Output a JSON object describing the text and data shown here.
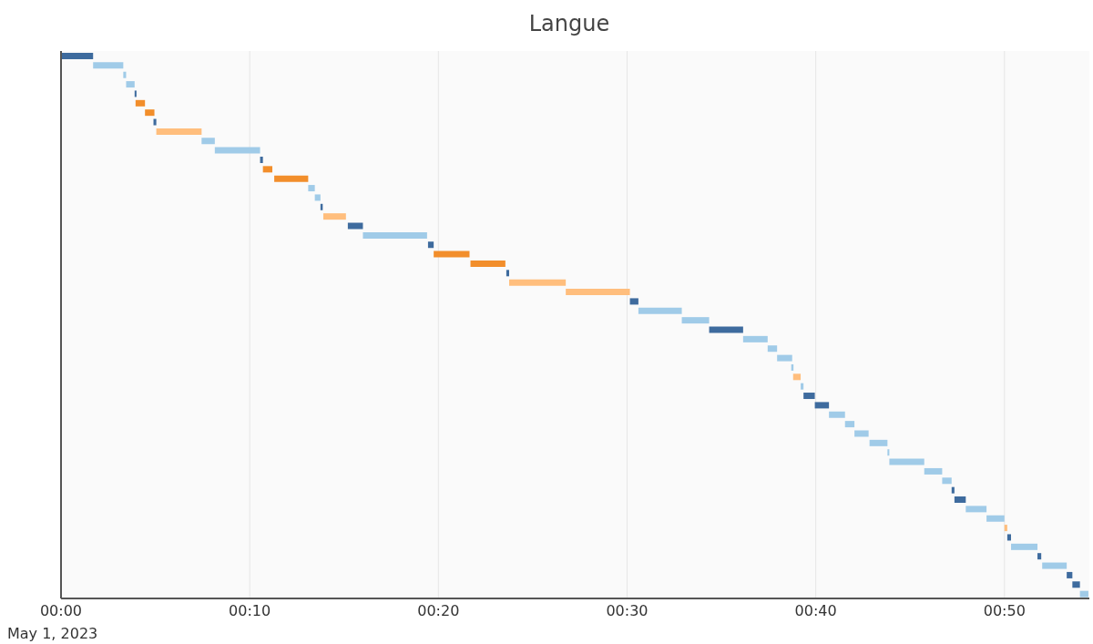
{
  "chart_data": {
    "type": "bar",
    "orientation": "horizontal",
    "title": "Langue",
    "annotations": [
      "May 1, 2023"
    ],
    "categories": [
      null,
      null,
      null,
      null,
      null,
      null,
      null,
      null,
      null,
      null,
      null,
      null,
      null,
      null,
      null,
      null,
      null,
      null,
      null,
      null,
      null,
      null,
      null,
      null,
      null,
      null,
      null,
      null,
      null,
      null,
      null,
      null,
      null,
      null,
      null,
      null,
      null,
      null,
      null,
      null,
      null,
      null,
      null,
      null,
      null,
      null,
      null,
      null,
      null,
      null,
      null,
      null,
      null,
      null,
      null,
      null,
      null,
      null
    ],
    "base": [
      0,
      1.7,
      3.3,
      3.45,
      3.9,
      3.95,
      4.45,
      4.9,
      5.05,
      7.45,
      8.15,
      10.55,
      10.7,
      11.3,
      13.1,
      13.45,
      13.75,
      13.9,
      15.2,
      16.0,
      19.45,
      19.75,
      21.7,
      23.6,
      23.75,
      26.75,
      30.15,
      30.6,
      32.9,
      34.35,
      36.15,
      37.45,
      37.95,
      38.7,
      38.8,
      39.2,
      39.35,
      39.95,
      40.7,
      41.55,
      42.05,
      42.85,
      43.8,
      43.9,
      45.75,
      46.7,
      47.2,
      47.35,
      47.95,
      49.05,
      50.0,
      50.15,
      50.35,
      51.75,
      52.0,
      53.3,
      53.6,
      54.0
    ],
    "values": [
      1.7,
      1.6,
      0.15,
      0.45,
      0.1,
      0.5,
      0.5,
      0.15,
      2.4,
      0.7,
      2.4,
      0.15,
      0.5,
      1.8,
      0.35,
      0.3,
      0.12,
      1.2,
      0.8,
      3.4,
      0.3,
      1.9,
      1.85,
      0.15,
      3.0,
      3.4,
      0.45,
      2.3,
      1.45,
      1.8,
      1.3,
      0.5,
      0.8,
      0.12,
      0.4,
      0.15,
      0.6,
      0.75,
      0.85,
      0.5,
      0.75,
      0.95,
      0.1,
      1.85,
      0.95,
      0.5,
      0.15,
      0.6,
      1.1,
      0.95,
      0.15,
      0.2,
      1.4,
      0.2,
      1.3,
      0.3,
      0.4,
      0.45
    ],
    "colors": [
      "#3e6b9e",
      "#a0cbe8",
      "#a0cbe8",
      "#a0cbe8",
      "#3e6b9e",
      "#f28e2b",
      "#f28e2b",
      "#3e6b9e",
      "#ffbe7d",
      "#a0cbe8",
      "#a0cbe8",
      "#3e6b9e",
      "#f28e2b",
      "#f28e2b",
      "#a0cbe8",
      "#a0cbe8",
      "#3e6b9e",
      "#ffbe7d",
      "#3e6b9e",
      "#a0cbe8",
      "#3e6b9e",
      "#f28e2b",
      "#f28e2b",
      "#3e6b9e",
      "#ffbe7d",
      "#ffbe7d",
      "#3e6b9e",
      "#a0cbe8",
      "#a0cbe8",
      "#3e6b9e",
      "#a0cbe8",
      "#a0cbe8",
      "#a0cbe8",
      "#a0cbe8",
      "#ffbe7d",
      "#a0cbe8",
      "#3e6b9e",
      "#3e6b9e",
      "#a0cbe8",
      "#a0cbe8",
      "#a0cbe8",
      "#a0cbe8",
      "#a0cbe8",
      "#a0cbe8",
      "#a0cbe8",
      "#a0cbe8",
      "#3e6b9e",
      "#3e6b9e",
      "#a0cbe8",
      "#a0cbe8",
      "#ffbe7d",
      "#3e6b9e",
      "#a0cbe8",
      "#3e6b9e",
      "#a0cbe8",
      "#3e6b9e",
      "#3e6b9e",
      "#a0cbe8"
    ],
    "xlim": [
      0,
      54.5
    ],
    "xticks": [
      {
        "value": 0,
        "label": "00:00"
      },
      {
        "value": 10,
        "label": "00:10"
      },
      {
        "value": 20,
        "label": "00:20"
      },
      {
        "value": 30,
        "label": "00:30"
      },
      {
        "value": 40,
        "label": "00:40"
      },
      {
        "value": 50,
        "label": "00:50"
      }
    ],
    "grid": "x",
    "tick_labels": "x"
  }
}
